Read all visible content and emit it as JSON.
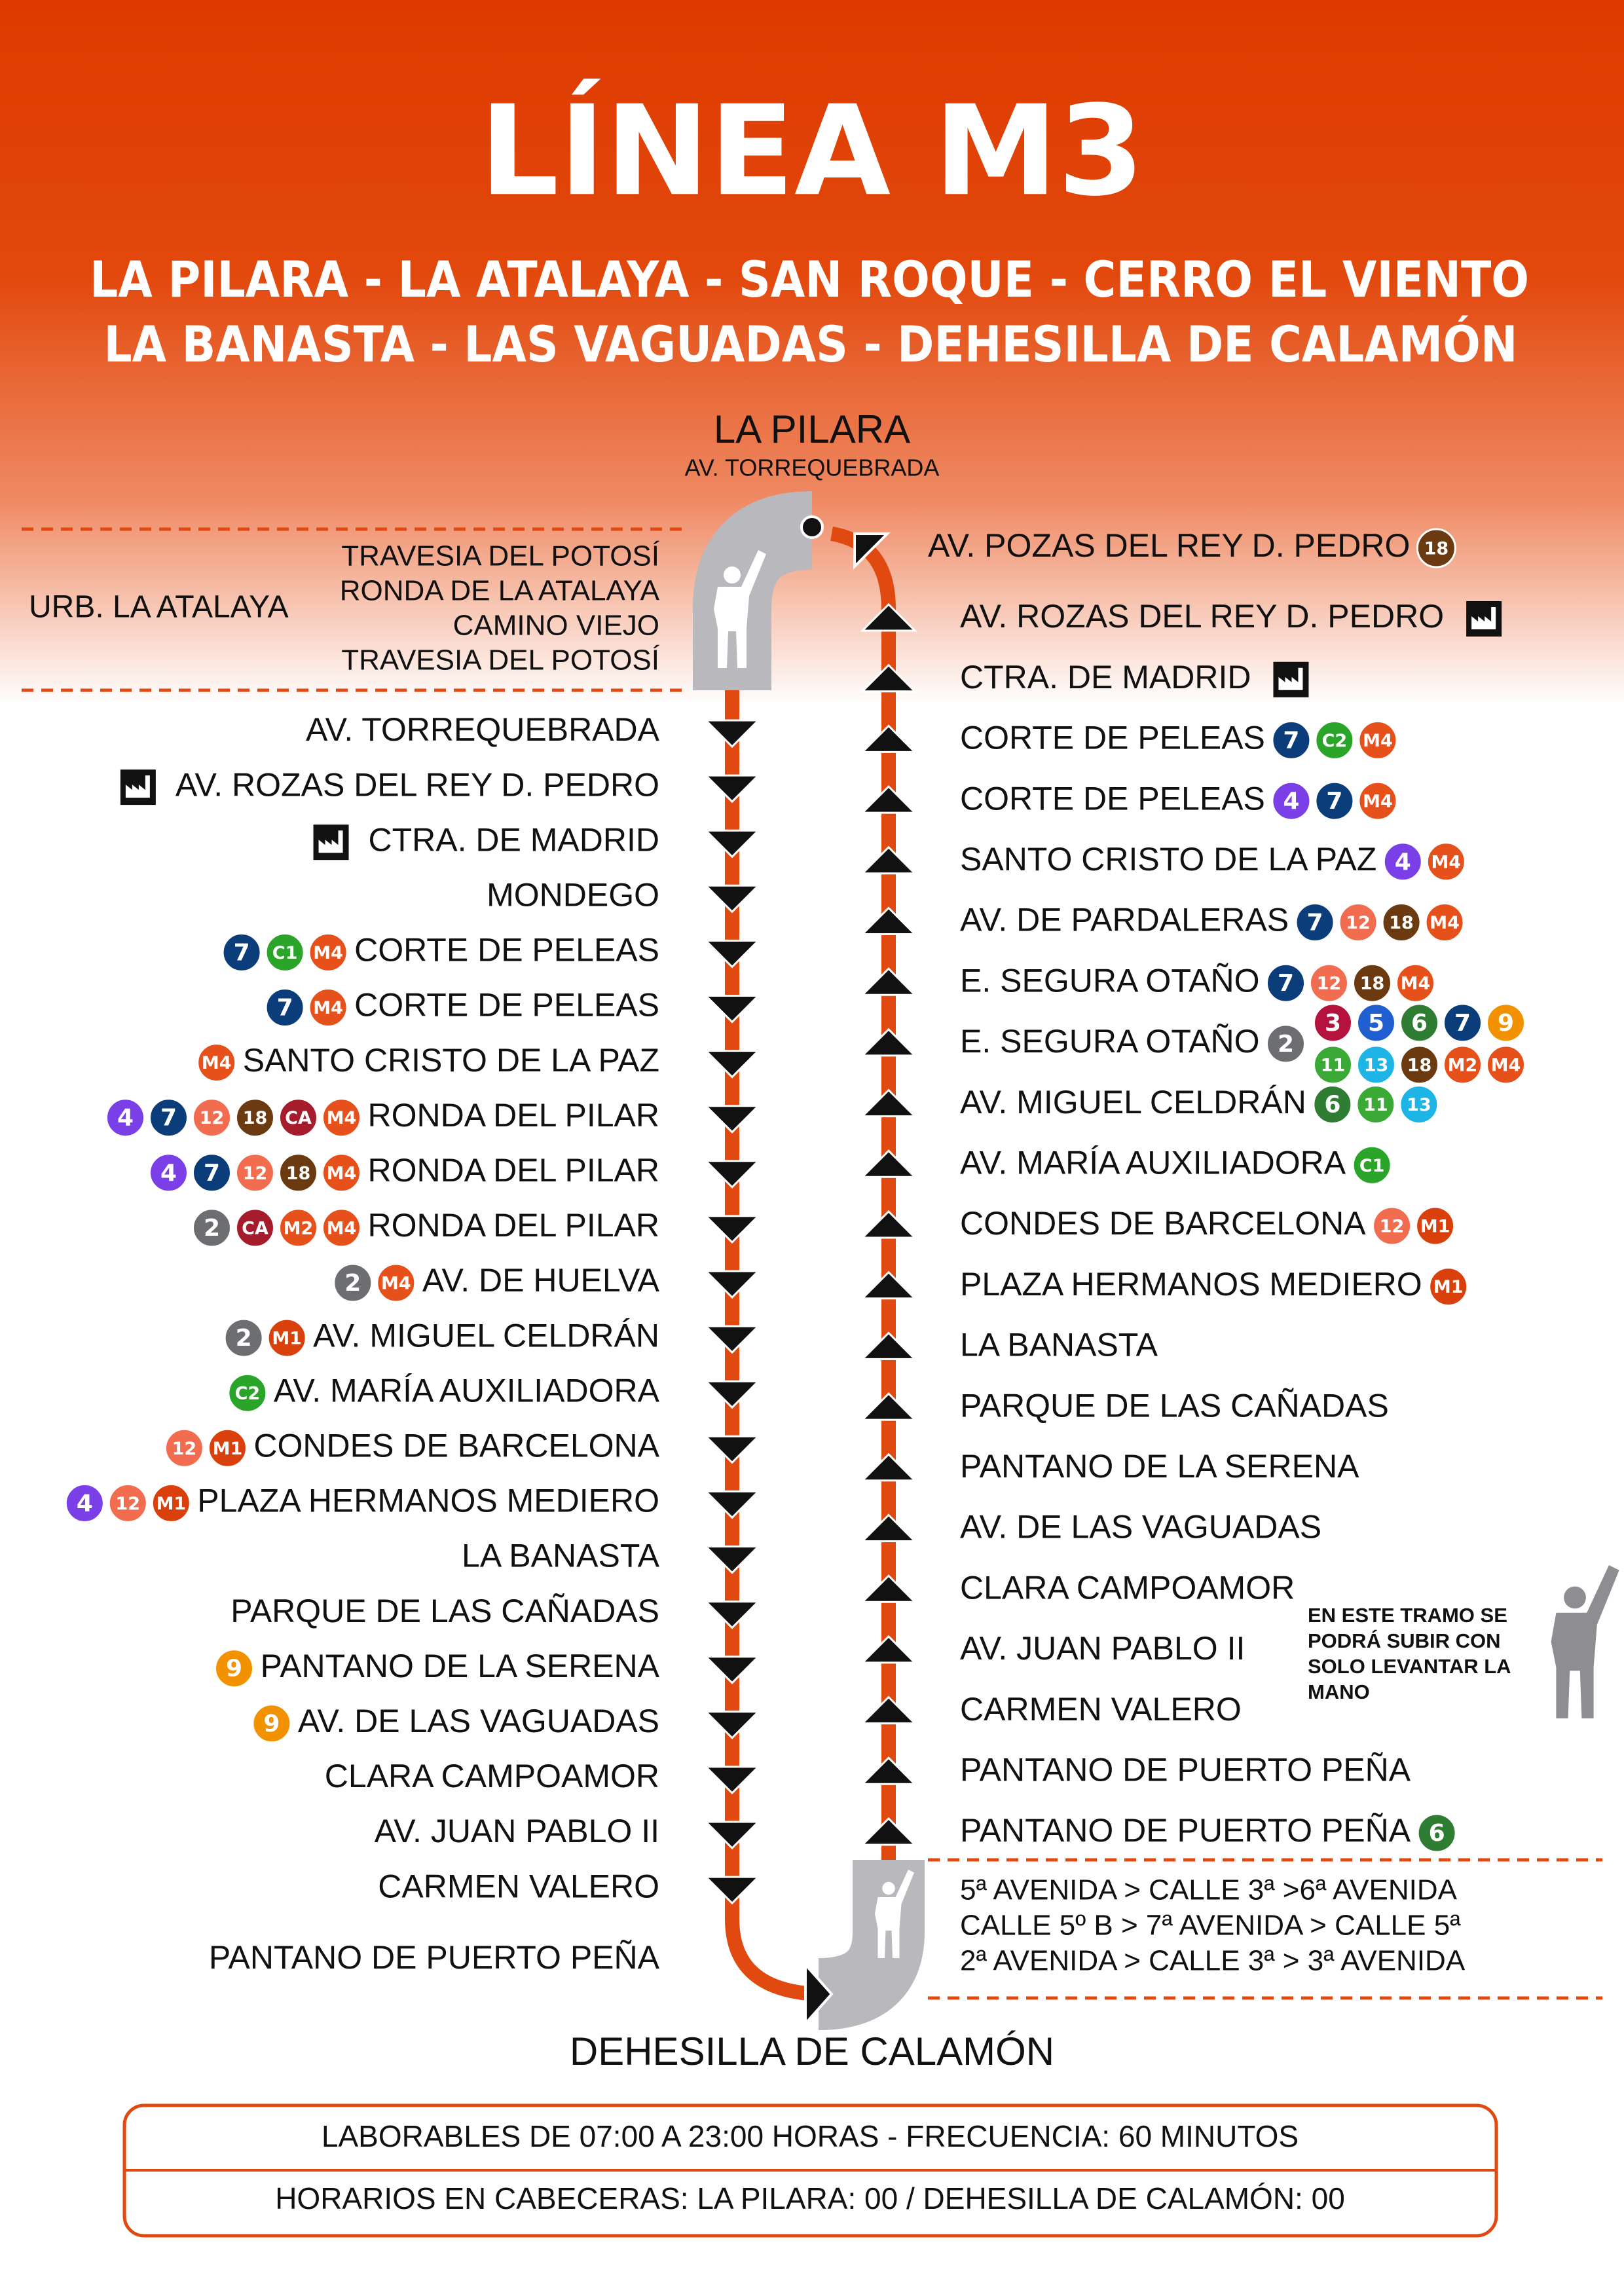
{
  "header": {
    "title": "LÍNEA M3",
    "subtitle": [
      "LA PILARA - LA ATALAYA - SAN ROQUE - CERRO EL VIENTO",
      "LA BANASTA - LAS VAGUADAS - DEHESILLA DE CALAMÓN"
    ]
  },
  "start": {
    "name": "LA PILARA",
    "street": "AV. TORREQUEBRADA"
  },
  "end": {
    "name": "DEHESILLA DE CALAMÓN"
  },
  "urbanization": {
    "name": "URB. LA ATALAYA",
    "streets": [
      "TRAVESIA DEL POTOSÍ",
      "RONDA DE LA ATALAYA",
      "CAMINO VIEJO",
      "TRAVESIA DEL POTOSÍ"
    ]
  },
  "outbound": [
    {
      "name": "AV. TORREQUEBRADA",
      "badges": []
    },
    {
      "name": "AV. ROZAS DEL REY D. PEDRO",
      "badges": [],
      "icon": "factory"
    },
    {
      "name": "CTRA. DE MADRID",
      "badges": [],
      "icon": "factory"
    },
    {
      "name": "MONDEGO",
      "badges": []
    },
    {
      "name": "CORTE DE PELEAS",
      "badges": [
        "7",
        "C1",
        "M4"
      ]
    },
    {
      "name": "CORTE DE PELEAS",
      "badges": [
        "7",
        "M4"
      ]
    },
    {
      "name": "SANTO CRISTO DE LA PAZ",
      "badges": [
        "M4"
      ]
    },
    {
      "name": "RONDA DEL PILAR",
      "badges": [
        "4",
        "7",
        "12",
        "18",
        "CA",
        "M4"
      ]
    },
    {
      "name": "RONDA DEL PILAR",
      "badges": [
        "4",
        "7",
        "12",
        "18",
        "M4"
      ]
    },
    {
      "name": "RONDA DEL PILAR",
      "badges": [
        "2",
        "CA",
        "M2",
        "M4"
      ]
    },
    {
      "name": "AV. DE HUELVA",
      "badges": [
        "2",
        "M4"
      ]
    },
    {
      "name": "AV. MIGUEL CELDRÁN",
      "badges": [
        "2",
        "M1"
      ]
    },
    {
      "name": "AV. MARÍA AUXILIADORA",
      "badges": [
        "C2"
      ]
    },
    {
      "name": "CONDES DE BARCELONA",
      "badges": [
        "12",
        "M1"
      ]
    },
    {
      "name": "PLAZA HERMANOS MEDIERO",
      "badges": [
        "4",
        "12",
        "M1"
      ]
    },
    {
      "name": "LA BANASTA",
      "badges": []
    },
    {
      "name": "PARQUE DE LAS CAÑADAS",
      "badges": []
    },
    {
      "name": "PANTANO DE LA SERENA",
      "badges": [
        "9"
      ]
    },
    {
      "name": "AV. DE LAS VAGUADAS",
      "badges": [
        "9"
      ]
    },
    {
      "name": "CLARA CAMPOAMOR",
      "badges": []
    },
    {
      "name": "AV. JUAN PABLO II",
      "badges": []
    },
    {
      "name": "CARMEN VALERO",
      "badges": []
    },
    {
      "name": "PANTANO DE PUERTO PEÑA",
      "badges": []
    }
  ],
  "inbound": [
    {
      "name": "AV. POZAS DEL REY D. PEDRO",
      "badges": [
        "18"
      ]
    },
    {
      "name": "AV. ROZAS DEL REY D. PEDRO",
      "badges": [],
      "icon": "factory"
    },
    {
      "name": "CTRA. DE MADRID",
      "badges": [],
      "icon": "factory"
    },
    {
      "name": "CORTE DE PELEAS",
      "badges": [
        "7",
        "C2",
        "M4"
      ]
    },
    {
      "name": "CORTE DE PELEAS",
      "badges": [
        "4",
        "7",
        "M4"
      ]
    },
    {
      "name": "SANTO CRISTO DE LA PAZ",
      "badges": [
        "4",
        "M4"
      ]
    },
    {
      "name": "AV. DE PARDALERAS",
      "badges": [
        "7",
        "12",
        "18",
        "M4"
      ]
    },
    {
      "name": "E. SEGURA OTAÑO",
      "badges": [
        "7",
        "12",
        "18",
        "M4"
      ]
    },
    {
      "name": "E. SEGURA OTAÑO",
      "badges": [
        "2"
      ],
      "badges_stacked": [
        [
          "3",
          "5",
          "6",
          "7",
          "9"
        ],
        [
          "11",
          "13",
          "18",
          "M2",
          "M4"
        ]
      ]
    },
    {
      "name": "AV. MIGUEL CELDRÁN",
      "badges": [
        "6",
        "11",
        "13"
      ]
    },
    {
      "name": "AV. MARÍA AUXILIADORA",
      "badges": [
        "C1"
      ]
    },
    {
      "name": "CONDES DE BARCELONA",
      "badges": [
        "12",
        "M1"
      ]
    },
    {
      "name": "PLAZA HERMANOS MEDIERO",
      "badges": [
        "M1"
      ]
    },
    {
      "name": "LA BANASTA",
      "badges": []
    },
    {
      "name": "PARQUE DE LAS CAÑADAS",
      "badges": []
    },
    {
      "name": "PANTANO DE LA SERENA",
      "badges": []
    },
    {
      "name": "AV. DE LAS VAGUADAS",
      "badges": []
    },
    {
      "name": "CLARA CAMPOAMOR",
      "badges": []
    },
    {
      "name": "AV. JUAN PABLO II",
      "badges": []
    },
    {
      "name": "CARMEN VALERO",
      "badges": []
    },
    {
      "name": "PANTANO DE PUERTO PEÑA",
      "badges": []
    },
    {
      "name": "PANTANO DE PUERTO PEÑA",
      "badges": [
        "6"
      ]
    }
  ],
  "hail_note": [
    "EN ESTE TRAMO SE",
    "PODRÁ SUBIR CON",
    "SOLO LEVANTAR LA",
    "MANO"
  ],
  "loop": [
    "5ª AVENIDA > CALLE 3ª >6ª AVENIDA",
    "CALLE 5º B > 7ª AVENIDA > CALLE 5ª",
    "2ª AVENIDA > CALLE 3ª > 3ª AVENIDA"
  ],
  "schedule": [
    "LABORABLES DE 07:00 A 23:00 HORAS - FRECUENCIA: 60 MINUTOS",
    "HORARIOS EN CABECERAS: LA PILARA: 00 / DEHESILLA DE CALAMÓN: 00"
  ],
  "line_colors": {
    "2": "#6d6e71",
    "3": "#b5123e",
    "4": "#7a3fe6",
    "5": "#1f5fd0",
    "6": "#2e7d32",
    "7": "#0b3d7a",
    "9": "#f39200",
    "11": "#3aa935",
    "12": "#f26d50",
    "13": "#1eb5e6",
    "18": "#6b3a10",
    "C1": "#2aa52a",
    "C2": "#2aa52a",
    "CA": "#a51d2d",
    "M1": "#d9400b",
    "M2": "#e5501b",
    "M4": "#e5501b"
  }
}
